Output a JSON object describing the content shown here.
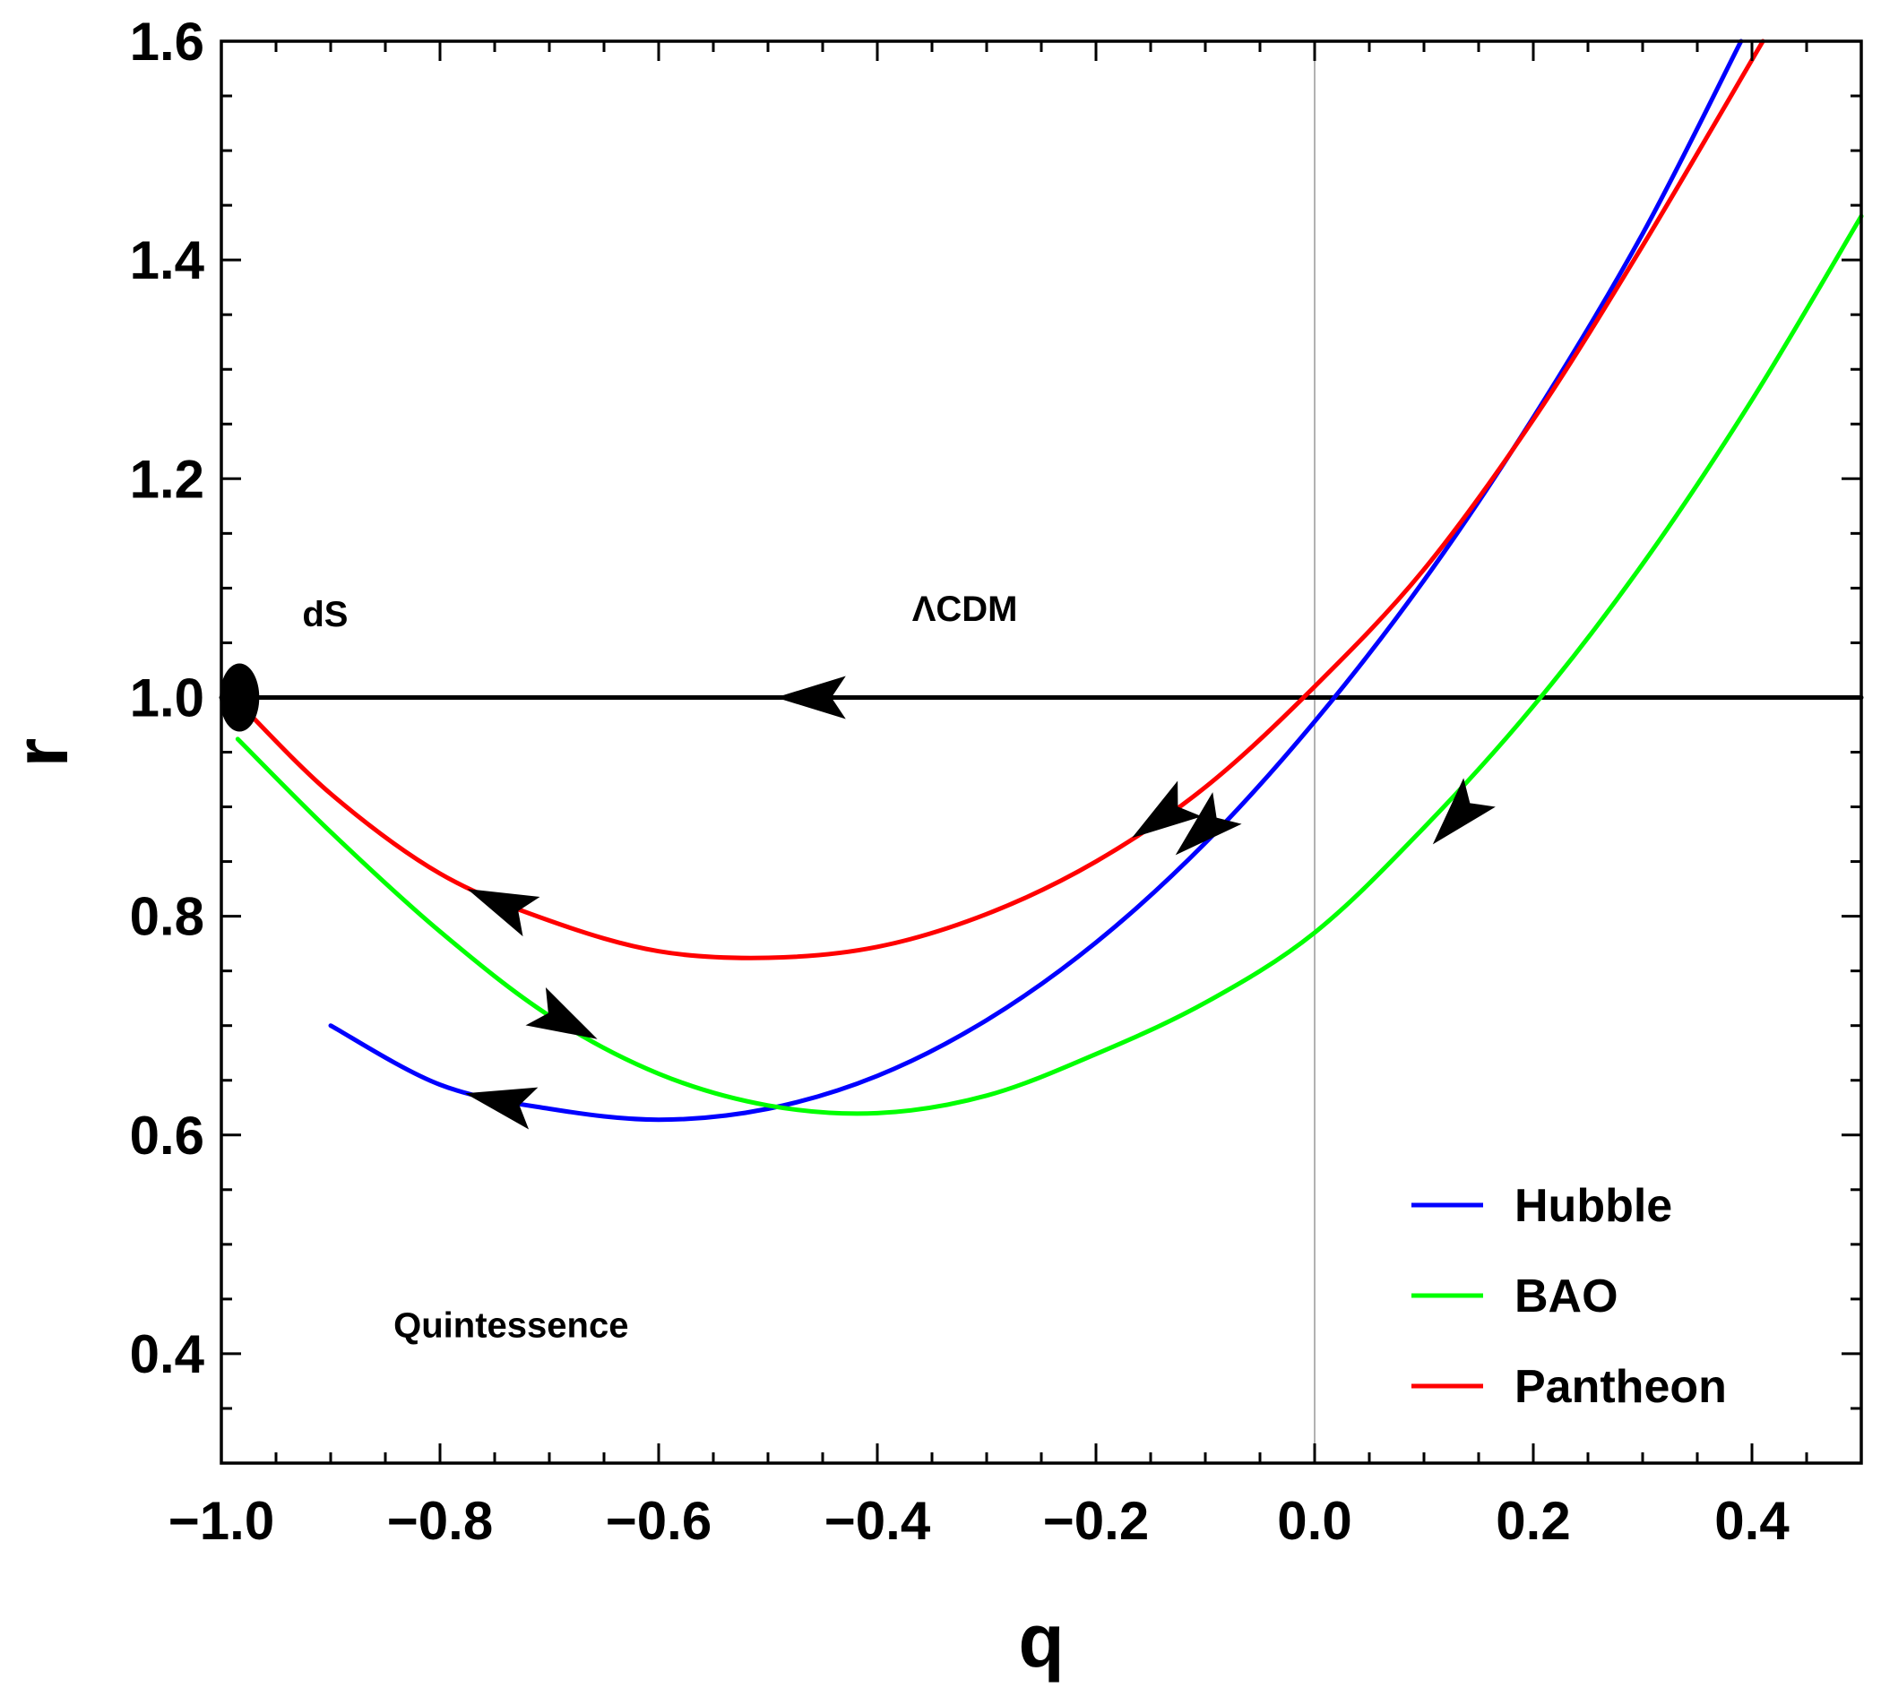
{
  "chart_data": {
    "type": "line",
    "title": "",
    "xlabel": "q",
    "ylabel": "r",
    "xlim": [
      -1.0,
      0.5
    ],
    "ylim": [
      0.3,
      1.6
    ],
    "x_ticks": [
      -1.0,
      -0.8,
      -0.6,
      -0.4,
      -0.2,
      0.0,
      0.2,
      0.4
    ],
    "x_tick_labels": [
      "−1.0",
      "−0.8",
      "−0.6",
      "−0.4",
      "−0.2",
      "0.0",
      "0.2",
      "0.4"
    ],
    "y_ticks": [
      0.4,
      0.6,
      0.8,
      1.0,
      1.2,
      1.4,
      1.6
    ],
    "y_tick_labels": [
      "0.4",
      "0.6",
      "0.8",
      "1.0",
      "1.2",
      "1.4",
      "1.6"
    ],
    "grid": false,
    "legend_position": "bottom-right",
    "series": [
      {
        "name": "Hubble",
        "color": "#0000ff",
        "x": [
          -0.9,
          -0.8,
          -0.7,
          -0.6,
          -0.5,
          -0.4,
          -0.3,
          -0.2,
          -0.1,
          0.0,
          0.1,
          0.2,
          0.3,
          0.39
        ],
        "y": [
          0.7,
          0.646,
          0.624,
          0.614,
          0.624,
          0.654,
          0.705,
          0.776,
          0.867,
          0.978,
          1.107,
          1.256,
          1.424,
          1.6
        ],
        "arrows": [
          {
            "x": -0.745,
            "y": 0.631,
            "direction": "left"
          },
          {
            "x": -0.103,
            "y": 0.878,
            "direction": "down-left"
          }
        ]
      },
      {
        "name": "BAO",
        "color": "#00ff00",
        "x": [
          -0.985,
          -0.9,
          -0.8,
          -0.7,
          -0.6,
          -0.5,
          -0.4,
          -0.3,
          -0.2,
          -0.1,
          0.0,
          0.1,
          0.2,
          0.3,
          0.4,
          0.5
        ],
        "y": [
          0.962,
          0.877,
          0.786,
          0.709,
          0.656,
          0.627,
          0.62,
          0.636,
          0.674,
          0.721,
          0.785,
          0.881,
          0.992,
          1.122,
          1.272,
          1.44
        ],
        "arrows": [
          {
            "x": -0.685,
            "y": 0.703,
            "direction": "down-right"
          },
          {
            "x": 0.13,
            "y": 0.89,
            "direction": "down-left"
          }
        ]
      },
      {
        "name": "Pantheon",
        "color": "#ff0000",
        "x": [
          -0.985,
          -0.9,
          -0.8,
          -0.7,
          -0.6,
          -0.5,
          -0.4,
          -0.3,
          -0.2,
          -0.1,
          0.0,
          0.1,
          0.2,
          0.3,
          0.41
        ],
        "y": [
          0.996,
          0.912,
          0.839,
          0.796,
          0.768,
          0.762,
          0.772,
          0.802,
          0.85,
          0.918,
          1.01,
          1.117,
          1.254,
          1.413,
          1.6
        ],
        "arrows": [
          {
            "x": -0.745,
            "y": 0.812,
            "direction": "left"
          },
          {
            "x": -0.14,
            "y": 0.89,
            "direction": "down-left"
          }
        ]
      },
      {
        "name": "ΛCDM",
        "color": "#000000",
        "legend": false,
        "x": [
          -1.0,
          0.5
        ],
        "y": [
          1.0,
          1.0
        ],
        "arrows": [
          {
            "x": -0.46,
            "y": 1.0,
            "direction": "left"
          }
        ]
      }
    ],
    "points": [
      {
        "label": "dS",
        "x": -0.985,
        "y": 1.0
      }
    ],
    "annotations": [
      {
        "text": "dS",
        "x": -0.905,
        "y": 1.065
      },
      {
        "text": "ΛCDM",
        "x": -0.32,
        "y": 1.07
      },
      {
        "text": "Quintessence",
        "x": -0.735,
        "y": 0.415
      }
    ],
    "reference_lines": [
      {
        "axis": "x",
        "value": 0.0,
        "color": "#999999"
      }
    ],
    "legend": [
      "Hubble",
      "BAO",
      "Pantheon"
    ]
  }
}
